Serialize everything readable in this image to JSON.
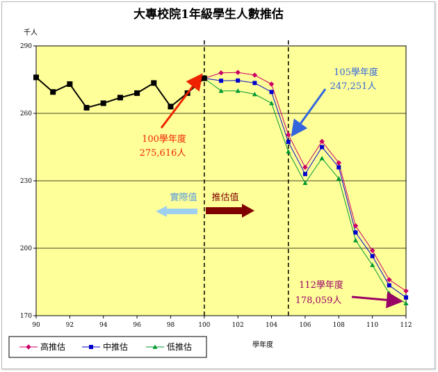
{
  "chart_data": {
    "type": "line",
    "title": "大專校院1年級學生人數推估",
    "ylabel": "千人",
    "xlabel": "學年度",
    "xlim": [
      90,
      112
    ],
    "ylim": [
      170,
      290
    ],
    "xticks": [
      "90",
      "92",
      "94",
      "96",
      "98",
      "100",
      "102",
      "104",
      "106",
      "108",
      "110",
      "112"
    ],
    "yticks": [
      "170",
      "200",
      "230",
      "260",
      "290"
    ],
    "grid": "horizontal",
    "legend_position": "bottom-left",
    "vlines": [
      100,
      105
    ],
    "colors": {
      "plot_bg": "#ffff99",
      "actual": "#000000",
      "high": "#cc0066",
      "mid": "#0000cc",
      "low": "#009933"
    },
    "actual": {
      "x": [
        90,
        91,
        92,
        93,
        94,
        95,
        96,
        97,
        98,
        99,
        100
      ],
      "values": [
        276,
        269.5,
        273,
        262.5,
        264.5,
        267,
        269,
        273.5,
        263,
        269,
        275.6
      ]
    },
    "series": [
      {
        "name": "高推估",
        "x": [
          100,
          101,
          102,
          103,
          104,
          105,
          106,
          107,
          108,
          109,
          110,
          111,
          112
        ],
        "values": [
          275.6,
          278,
          278.2,
          277,
          273,
          250.5,
          236,
          247.5,
          238,
          210,
          199,
          186,
          181
        ]
      },
      {
        "name": "中推估",
        "x": [
          100,
          101,
          102,
          103,
          104,
          105,
          106,
          107,
          108,
          109,
          110,
          111,
          112
        ],
        "values": [
          275.6,
          274.5,
          274.6,
          273.5,
          269.5,
          247.3,
          233,
          245,
          236,
          207,
          196.5,
          183.5,
          178.1
        ]
      },
      {
        "name": "低推估",
        "x": [
          100,
          101,
          102,
          103,
          104,
          105,
          106,
          107,
          108,
          109,
          110,
          111,
          112
        ],
        "values": [
          275.6,
          270,
          270,
          268.5,
          264.5,
          243,
          229,
          240,
          231,
          203.5,
          192.5,
          180,
          175.5
        ]
      }
    ],
    "annotations": {
      "a100_title": "100學年度",
      "a100_value": "275,616人",
      "a105_title": "105學年度",
      "a105_value": "247,251人",
      "a112_title": "112學年度",
      "a112_value": "178,059人",
      "actual_label": "實際值",
      "estimate_label": "推估值"
    }
  }
}
